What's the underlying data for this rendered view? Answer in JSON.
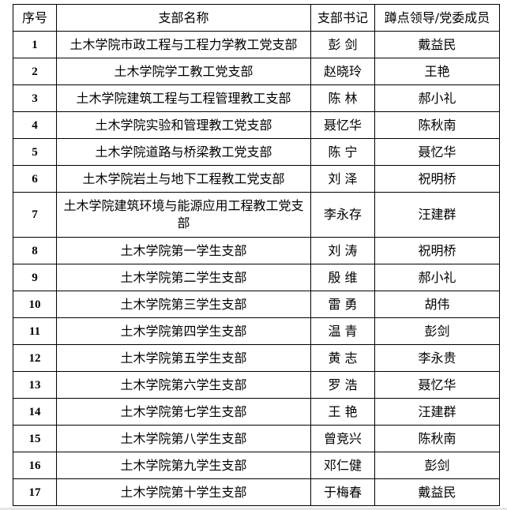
{
  "headers": [
    "序号",
    "支部名称",
    "支部书记",
    "蹲点领导/党委成员"
  ],
  "rows": [
    [
      "1",
      "土木学院市政工程与工程力学教工党支部",
      "彭 剑",
      "戴益民"
    ],
    [
      "2",
      "土木学院学工教工党支部",
      "赵晓玲",
      "王艳"
    ],
    [
      "3",
      "土木学院建筑工程与工程管理教工支部",
      "陈 林",
      "郝小礼"
    ],
    [
      "4",
      "土木学院实验和管理教工党支部",
      "聂忆华",
      "陈秋南"
    ],
    [
      "5",
      "土木学院道路与桥梁教工党支部",
      "陈 宁",
      "聂忆华"
    ],
    [
      "6",
      "土木学院岩土与地下工程教工党支部",
      "刘 泽",
      "祝明桥"
    ],
    [
      "7",
      "土木学院建筑环境与能源应用工程教工党支部",
      "李永存",
      "汪建群"
    ],
    [
      "8",
      "土木学院第一学生支部",
      "刘 涛",
      "祝明桥"
    ],
    [
      "9",
      "土木学院第二学生支部",
      "殷 维",
      "郝小礼"
    ],
    [
      "10",
      "土木学院第三学生支部",
      "雷 勇",
      "胡伟"
    ],
    [
      "11",
      "土木学院第四学生支部",
      "温 青",
      "彭剑"
    ],
    [
      "12",
      "土木学院第五学生支部",
      "黄 志",
      "李永贵"
    ],
    [
      "13",
      "土木学院第六学生支部",
      "罗 浩",
      "聂忆华"
    ],
    [
      "14",
      "土木学院第七学生支部",
      "王 艳",
      "汪建群"
    ],
    [
      "15",
      "土木学院第八学生支部",
      "曾竞兴",
      "陈秋南"
    ],
    [
      "16",
      "土木学院第九学生支部",
      "邓仁健",
      "彭剑"
    ],
    [
      "17",
      "土木学院第十学生支部",
      "于梅春",
      "戴益民"
    ]
  ]
}
